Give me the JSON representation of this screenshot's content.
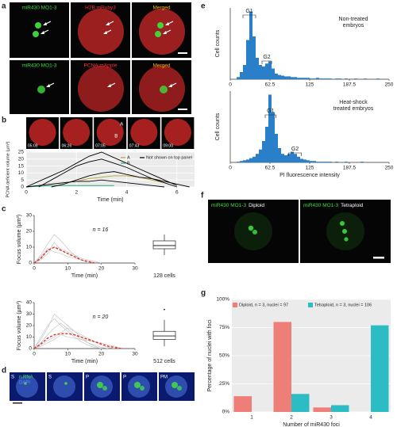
{
  "panel_labels": [
    "a",
    "b",
    "c",
    "d",
    "e",
    "f",
    "g"
  ],
  "images": {
    "a": [
      {
        "label": "miR430 MO1-3",
        "color": "#3ddc3d"
      },
      {
        "label": "H2B:mRuby3",
        "color": "#ff3030"
      },
      {
        "label": "Merged",
        "color": "#ffb300"
      },
      {
        "label": "miR430 MO1-3",
        "color": "#3ddc3d"
      },
      {
        "label": "PCNA:mApple",
        "color": "#ff3030"
      },
      {
        "label": "Merged",
        "color": "#ffb300"
      }
    ],
    "b": {
      "times": [
        "05:09",
        "06:26",
        "07:05",
        "07:43",
        "09:00"
      ],
      "marks": [
        "A",
        "B"
      ]
    },
    "d": {
      "stages": [
        "S",
        "S",
        "P",
        "P",
        "PM"
      ],
      "channels": [
        {
          "label": "n.RNA",
          "color": "#44dd44"
        },
        {
          "label": "DAPI",
          "color": "#5b8cff"
        }
      ]
    },
    "f": [
      {
        "label": "miR430 MO1-3",
        "color": "#3ddc3d"
      },
      {
        "label": "Diploid",
        "color": "#ffffff"
      },
      {
        "label": "miR430 MO1-3",
        "color": "#3ddc3d"
      },
      {
        "label": "Tetraploid",
        "color": "#ffffff"
      }
    ]
  },
  "chart_data": [
    {
      "type": "line",
      "x": [
        0,
        0.5,
        1,
        1.5,
        2,
        2.5,
        3,
        3.5,
        4,
        4.5,
        5,
        5.5,
        6,
        6.5
      ],
      "xlim": [
        0,
        6.7
      ],
      "xticks": [
        0,
        2,
        4,
        6
      ],
      "ylim": [
        0,
        25
      ],
      "yticks": [
        0,
        5,
        10,
        15,
        20,
        25
      ],
      "grid": true,
      "xlabel": "Time (min)",
      "ylabel": "PCNA deficient volume (µm³)",
      "series": [
        {
          "name": "A",
          "color": "#b5a22c",
          "values": [
            null,
            1,
            2,
            3,
            4,
            6,
            7,
            8,
            8,
            7,
            5,
            3,
            null,
            null
          ]
        },
        {
          "name": "B",
          "color": "#2aa88a",
          "values": [
            0,
            0.5,
            1,
            1,
            1,
            1,
            1,
            1,
            null,
            null,
            null,
            null,
            null,
            null
          ]
        },
        {
          "name": "Not shown on top panel",
          "color": "#000000",
          "values": [
            0,
            4,
            8,
            12,
            17,
            22,
            25,
            21,
            17,
            13,
            9,
            5,
            1,
            null
          ]
        },
        {
          "color": "#000000",
          "values": [
            null,
            0,
            5,
            10,
            15,
            18,
            20,
            17,
            14,
            10,
            6,
            3,
            0,
            null
          ]
        },
        {
          "color": "#000000",
          "values": [
            null,
            null,
            0,
            2,
            5,
            8,
            10,
            11,
            9,
            7,
            6,
            4,
            2,
            0
          ]
        },
        {
          "color": "#000000",
          "values": [
            0,
            1,
            2,
            3,
            4,
            4,
            5,
            4,
            3,
            2,
            1,
            0,
            null,
            null
          ]
        }
      ]
    },
    {
      "type": "line",
      "annotation": "n = 16",
      "x": [
        0,
        2,
        4,
        6,
        8,
        10,
        12,
        14,
        16,
        18,
        20,
        22,
        24,
        26
      ],
      "xlim": [
        0,
        30
      ],
      "xticks": [
        0,
        10,
        20,
        30
      ],
      "ylim": [
        0,
        30
      ],
      "yticks": [
        0,
        10,
        20,
        30
      ],
      "xlabel": "Time (min)",
      "ylabel": "Focus volume (µm³)",
      "series": [
        {
          "color": "#bdbdbd",
          "values": [
            0,
            5,
            12,
            18,
            14,
            9,
            5,
            2,
            0,
            null,
            null,
            null,
            null,
            null
          ]
        },
        {
          "color": "#bdbdbd",
          "values": [
            0,
            3,
            8,
            10,
            9,
            7,
            5,
            3,
            2,
            1,
            0,
            null,
            null,
            null
          ]
        },
        {
          "color": "#bdbdbd",
          "values": [
            0,
            2,
            6,
            13,
            8,
            6,
            4,
            2,
            1,
            0,
            null,
            null,
            null,
            null
          ]
        },
        {
          "color": "#bdbdbd",
          "values": [
            0,
            4,
            9,
            7,
            6,
            4,
            3,
            2,
            1,
            1,
            0,
            null,
            null,
            null
          ]
        },
        {
          "color": "#e03020",
          "dash": true,
          "values": [
            0,
            3,
            8,
            10,
            8,
            6,
            4,
            2,
            1,
            0,
            null,
            null,
            null,
            null
          ]
        }
      ],
      "box": {
        "whisker_low": 5,
        "q1": 9,
        "median": 11,
        "q3": 14,
        "whisker_high": 18
      },
      "box_label": "128 cells"
    },
    {
      "type": "line",
      "annotation": "n = 20",
      "x": [
        0,
        2,
        4,
        6,
        8,
        10,
        12,
        14,
        16,
        18,
        20,
        22,
        24,
        26
      ],
      "xlim": [
        0,
        30
      ],
      "xticks": [
        0,
        10,
        20,
        30
      ],
      "ylim": [
        0,
        40
      ],
      "yticks": [
        0,
        10,
        20,
        30,
        40
      ],
      "xlabel": "Time (min)",
      "ylabel": "Focus volume (µm³)",
      "series": [
        {
          "color": "#bdbdbd",
          "values": [
            0,
            8,
            18,
            30,
            25,
            20,
            15,
            10,
            5,
            2,
            0,
            null,
            null,
            null
          ]
        },
        {
          "color": "#bdbdbd",
          "values": [
            0,
            5,
            12,
            18,
            22,
            17,
            12,
            8,
            5,
            3,
            1,
            0,
            null,
            null
          ]
        },
        {
          "color": "#bdbdbd",
          "values": [
            0,
            3,
            7,
            10,
            14,
            18,
            15,
            12,
            9,
            6,
            3,
            1,
            0,
            null
          ]
        },
        {
          "color": "#bdbdbd",
          "values": [
            0,
            10,
            20,
            26,
            20,
            15,
            10,
            6,
            3,
            1,
            0,
            null,
            null,
            null
          ]
        },
        {
          "color": "#bdbdbd",
          "values": [
            0,
            2,
            5,
            8,
            12,
            10,
            9,
            8,
            7,
            6,
            5,
            3,
            2,
            0
          ]
        },
        {
          "color": "#e03020",
          "dash": true,
          "values": [
            0,
            4,
            9,
            12,
            13,
            13,
            12,
            10,
            8,
            6,
            4,
            2,
            1,
            0
          ]
        }
      ],
      "box": {
        "whisker_low": 2,
        "q1": 8,
        "median": 11,
        "q3": 15,
        "whisker_high": 25,
        "outlier": 34
      },
      "box_label": "512 cells"
    },
    {
      "type": "histogram",
      "title": [
        "Non-treated",
        "embryos"
      ],
      "annotations": [
        "G1",
        "G2"
      ],
      "ylabel": "Cell counts",
      "color": "#2a7fc9",
      "bins": [
        0,
        5,
        10,
        15,
        20,
        25,
        30,
        35,
        40,
        45,
        50,
        55,
        60,
        65,
        70,
        75,
        80,
        85,
        90,
        95,
        100,
        105,
        110,
        115,
        120,
        125,
        130,
        135,
        140,
        145,
        150,
        155,
        160,
        165,
        170,
        175,
        180,
        185,
        190,
        195,
        200,
        205,
        210,
        215,
        220,
        225,
        230,
        235,
        240,
        245,
        250
      ],
      "values": [
        0,
        0,
        3,
        10,
        20,
        55,
        95,
        60,
        30,
        20,
        18,
        22,
        25,
        15,
        8,
        6,
        5,
        4,
        4,
        3,
        3,
        2,
        2,
        2,
        2,
        1,
        1,
        2,
        1,
        1,
        1,
        1,
        0,
        1,
        1,
        0,
        1,
        0,
        0,
        1,
        0,
        0,
        1,
        0,
        0,
        0,
        1,
        0,
        0,
        0
      ],
      "xlim": [
        0,
        250
      ],
      "xticks": [
        0,
        62.5,
        125,
        187.5,
        250
      ],
      "ylim": [
        0,
        100
      ]
    },
    {
      "type": "histogram",
      "title": [
        "Heat-shock",
        "treated embryos"
      ],
      "annotations": [
        "G1",
        "G2"
      ],
      "ylabel": "Cell counts",
      "xlabel": "PI fluorescence intensity",
      "color": "#2a7fc9",
      "bins": [
        0,
        5,
        10,
        15,
        20,
        25,
        30,
        35,
        40,
        45,
        50,
        55,
        60,
        65,
        70,
        75,
        80,
        85,
        90,
        95,
        100,
        105,
        110,
        115,
        120,
        125,
        130,
        135,
        140,
        145,
        150,
        155,
        160,
        165,
        170,
        175,
        180,
        185,
        190,
        195,
        200,
        205,
        210,
        215,
        220,
        225,
        230,
        235,
        240,
        245,
        250
      ],
      "values": [
        0,
        0,
        1,
        2,
        3,
        4,
        6,
        8,
        12,
        18,
        30,
        50,
        95,
        70,
        40,
        20,
        12,
        10,
        12,
        15,
        12,
        8,
        5,
        4,
        3,
        2,
        2,
        1,
        1,
        1,
        1,
        1,
        0,
        1,
        0,
        0,
        1,
        0,
        0,
        0,
        0,
        1,
        0,
        0,
        0,
        0,
        0,
        0,
        0,
        0
      ],
      "xlim": [
        0,
        250
      ],
      "xticks": [
        0,
        62.5,
        125,
        187.5,
        250
      ],
      "ylim": [
        0,
        100
      ]
    },
    {
      "type": "bar",
      "categories": [
        "1",
        "2",
        "3",
        "4"
      ],
      "ylim": [
        0,
        100
      ],
      "grid": true,
      "yticks": [
        {
          "value": 0,
          "label": "0%"
        },
        {
          "value": 25,
          "label": "25%"
        },
        {
          "value": 50,
          "label": "50%"
        },
        {
          "value": 75,
          "label": "75%"
        },
        {
          "value": 100,
          "label": "100%"
        }
      ],
      "xlabel": "Number of miR430 foci",
      "ylabel": "Percentage of nuclei with foci",
      "series": [
        {
          "name": "Diploid, n = 3, nuclei = 97",
          "color": "#ee7f78",
          "values": [
            14,
            80,
            4,
            0
          ]
        },
        {
          "name": "Tetraploid, n = 3, nuclei = 106",
          "color": "#2bbcc4",
          "values": [
            0,
            16,
            6,
            77
          ]
        }
      ]
    }
  ]
}
